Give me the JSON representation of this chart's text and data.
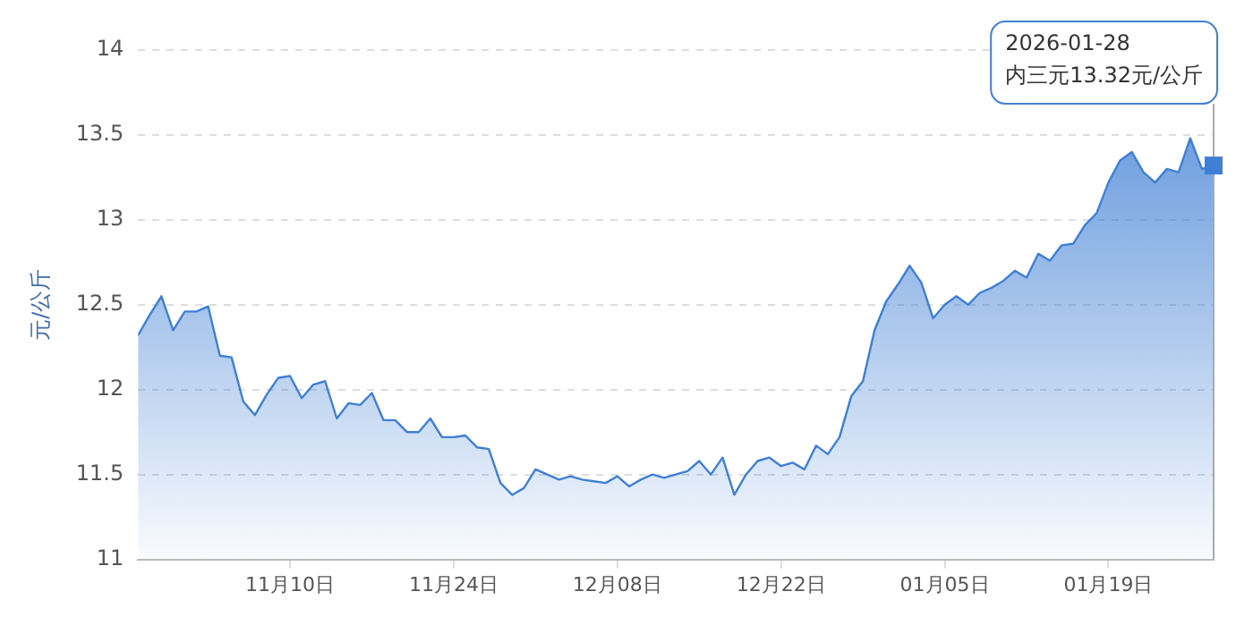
{
  "chart_data": {
    "type": "area",
    "ylabel": "元/公斤",
    "x": [
      "2025-10-28",
      "2025-10-29",
      "2025-10-30",
      "2025-10-31",
      "2025-11-01",
      "2025-11-02",
      "2025-11-03",
      "2025-11-04",
      "2025-11-05",
      "2025-11-06",
      "2025-11-07",
      "2025-11-08",
      "2025-11-09",
      "2025-11-10",
      "2025-11-11",
      "2025-11-12",
      "2025-11-13",
      "2025-11-14",
      "2025-11-15",
      "2025-11-16",
      "2025-11-17",
      "2025-11-18",
      "2025-11-19",
      "2025-11-20",
      "2025-11-21",
      "2025-11-22",
      "2025-11-23",
      "2025-11-24",
      "2025-11-25",
      "2025-11-26",
      "2025-11-27",
      "2025-11-28",
      "2025-11-29",
      "2025-11-30",
      "2025-12-01",
      "2025-12-02",
      "2025-12-03",
      "2025-12-04",
      "2025-12-05",
      "2025-12-06",
      "2025-12-07",
      "2025-12-08",
      "2025-12-09",
      "2025-12-10",
      "2025-12-11",
      "2025-12-12",
      "2025-12-13",
      "2025-12-14",
      "2025-12-15",
      "2025-12-16",
      "2025-12-17",
      "2025-12-18",
      "2025-12-19",
      "2025-12-20",
      "2025-12-21",
      "2025-12-22",
      "2025-12-23",
      "2025-12-24",
      "2025-12-25",
      "2025-12-26",
      "2025-12-27",
      "2025-12-28",
      "2025-12-29",
      "2025-12-30",
      "2025-12-31",
      "2026-01-01",
      "2026-01-02",
      "2026-01-03",
      "2026-01-04",
      "2026-01-05",
      "2026-01-06",
      "2026-01-07",
      "2026-01-08",
      "2026-01-09",
      "2026-01-10",
      "2026-01-11",
      "2026-01-12",
      "2026-01-13",
      "2026-01-14",
      "2026-01-15",
      "2026-01-16",
      "2026-01-17",
      "2026-01-18",
      "2026-01-19",
      "2026-01-20",
      "2026-01-21",
      "2026-01-22",
      "2026-01-23",
      "2026-01-24",
      "2026-01-25",
      "2026-01-26",
      "2026-01-27",
      "2026-01-28"
    ],
    "series": [
      {
        "color": "#3f7fd4",
        "values": [
          12.32,
          12.44,
          12.55,
          12.35,
          12.46,
          12.46,
          12.49,
          12.2,
          12.19,
          11.93,
          11.85,
          11.97,
          12.07,
          12.08,
          11.95,
          12.03,
          12.05,
          11.83,
          11.92,
          11.91,
          11.98,
          11.82,
          11.82,
          11.75,
          11.75,
          11.83,
          11.72,
          11.72,
          11.73,
          11.66,
          11.65,
          11.45,
          11.38,
          11.42,
          11.53,
          11.5,
          11.47,
          11.49,
          11.47,
          11.46,
          11.45,
          11.49,
          11.43,
          11.47,
          11.5,
          11.48,
          11.5,
          11.52,
          11.58,
          11.5,
          11.6,
          11.38,
          11.5,
          11.58,
          11.6,
          11.55,
          11.57,
          11.53,
          11.67,
          11.62,
          11.72,
          11.96,
          12.05,
          12.35,
          12.52,
          12.62,
          12.73,
          12.63,
          12.42,
          12.5,
          12.55,
          12.5,
          12.57,
          12.6,
          12.64,
          12.7,
          12.66,
          12.8,
          12.76,
          12.85,
          12.86,
          12.97,
          13.04,
          13.22,
          13.35,
          13.4,
          13.28,
          13.22,
          13.3,
          13.28,
          13.48,
          13.3,
          13.32
        ]
      }
    ],
    "xlim": [
      "2025-10-28",
      "2026-01-28"
    ],
    "xticks": [
      {
        "value": "2025-11-10",
        "label": "11月10日"
      },
      {
        "value": "2025-11-24",
        "label": "11月24日"
      },
      {
        "value": "2025-12-08",
        "label": "12月08日"
      },
      {
        "value": "2025-12-22",
        "label": "12月22日"
      },
      {
        "value": "2026-01-05",
        "label": "01月05日"
      },
      {
        "value": "2026-01-19",
        "label": "01月19日"
      }
    ],
    "ylim": [
      11,
      14
    ],
    "yticks": [
      11,
      11.5,
      12,
      12.5,
      13,
      13.5,
      14
    ],
    "grid": "y",
    "line_style": "solid",
    "marker": "none",
    "annotations": [
      "2026-01-28\n内三元13.32元/公斤"
    ]
  }
}
